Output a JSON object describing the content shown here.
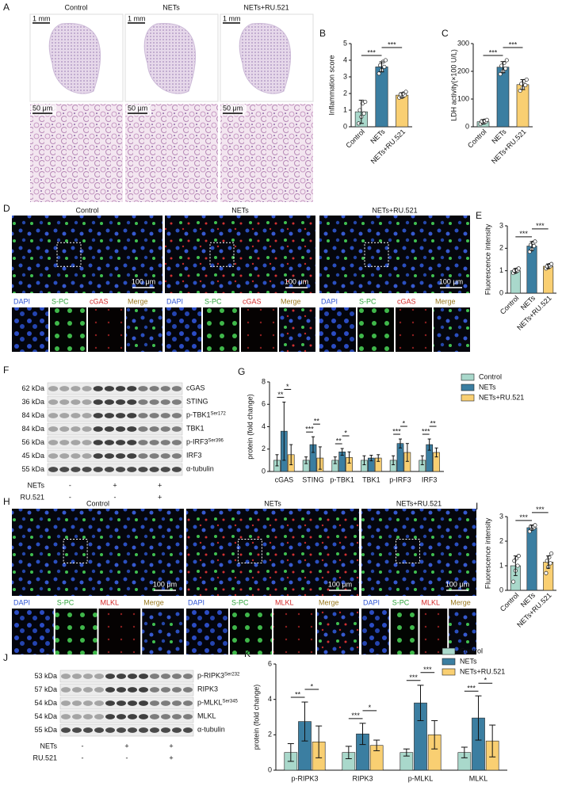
{
  "chart_data": [
    {
      "type": "bar",
      "panel": "B",
      "ylabel": "Inflammation score",
      "categories": [
        "Control",
        "NETs",
        "NETs+RU.521"
      ],
      "colors": [
        "#a9d8cb",
        "#3b7ea1",
        "#f9cf72"
      ],
      "values": [
        0.9,
        3.6,
        1.9
      ],
      "errors": [
        0.7,
        0.3,
        0.15
      ],
      "points": [
        [
          0.2,
          0.6,
          0.8,
          1.0,
          1.4,
          1.5
        ],
        [
          3.2,
          3.4,
          3.6,
          3.7,
          3.9,
          4.0
        ],
        [
          1.75,
          1.8,
          1.9,
          1.95,
          2.0,
          2.1
        ]
      ],
      "ylim": [
        0,
        5
      ],
      "yticks": [
        0,
        1,
        2,
        3,
        4,
        5
      ],
      "significance": [
        {
          "text": "***",
          "groups": [
            "Control",
            "NETs"
          ]
        },
        {
          "text": "***",
          "groups": [
            "NETs",
            "NETs+RU.521"
          ]
        }
      ]
    },
    {
      "type": "bar",
      "panel": "C",
      "ylabel": "LDH activity(×100 U/L)",
      "categories": [
        "Control",
        "NETs",
        "NETs+RU.521"
      ],
      "colors": [
        "#a9d8cb",
        "#3b7ea1",
        "#f9cf72"
      ],
      "values": [
        18,
        215,
        152
      ],
      "errors": [
        8,
        20,
        18
      ],
      "points": [
        [
          10,
          15,
          18,
          20,
          22,
          25
        ],
        [
          190,
          200,
          210,
          220,
          230,
          240
        ],
        [
          130,
          140,
          150,
          155,
          165,
          170
        ]
      ],
      "ylim": [
        0,
        300
      ],
      "yticks": [
        0,
        100,
        200,
        300
      ],
      "significance": [
        {
          "text": "***",
          "groups": [
            "Control",
            "NETs"
          ]
        },
        {
          "text": "***",
          "groups": [
            "NETs",
            "NETs+RU.521"
          ]
        }
      ]
    },
    {
      "type": "bar",
      "panel": "E",
      "ylabel": "Fluorescence intensity",
      "categories": [
        "Control",
        "NETs",
        "NETs+RU.521"
      ],
      "colors": [
        "#a9d8cb",
        "#3b7ea1",
        "#f9cf72"
      ],
      "values": [
        1.0,
        2.1,
        1.2
      ],
      "errors": [
        0.1,
        0.2,
        0.1
      ],
      "points": [
        [
          0.9,
          0.95,
          1.0,
          1.0,
          1.05,
          1.1
        ],
        [
          1.85,
          1.95,
          2.1,
          2.15,
          2.25,
          2.3
        ],
        [
          1.1,
          1.15,
          1.2,
          1.2,
          1.25,
          1.3
        ]
      ],
      "ylim": [
        0,
        3
      ],
      "yticks": [
        0,
        1,
        2,
        3
      ],
      "significance": [
        {
          "text": "***",
          "groups": [
            "Control",
            "NETs"
          ]
        },
        {
          "text": "***",
          "groups": [
            "NETs",
            "NETs+RU.521"
          ]
        }
      ]
    },
    {
      "type": "bar",
      "panel": "G",
      "ylabel": "protein (fold change)",
      "legend": "upper right",
      "categories": [
        "cGAS",
        "STING",
        "p-TBK1",
        "TBK1",
        "p-IRF3",
        "IRF3"
      ],
      "series": [
        {
          "name": "Control",
          "color": "#a9d8cb",
          "values": [
            1,
            1,
            1,
            1,
            1,
            1
          ],
          "errors": [
            0.5,
            0.3,
            0.3,
            0.4,
            0.4,
            0.4
          ]
        },
        {
          "name": "NETs",
          "color": "#3b7ea1",
          "values": [
            3.6,
            2.4,
            1.75,
            1.2,
            2.5,
            2.4
          ],
          "errors": [
            2.6,
            0.7,
            0.3,
            0.25,
            0.4,
            0.5
          ]
        },
        {
          "name": "NETs+RU.521",
          "color": "#f9cf72",
          "values": [
            1.5,
            1.2,
            1.25,
            1.2,
            1.7,
            1.7
          ],
          "errors": [
            0.9,
            1.0,
            0.5,
            0.3,
            0.8,
            0.4
          ]
        }
      ],
      "ylim": [
        0,
        8
      ],
      "yticks": [
        0,
        2,
        4,
        6,
        8
      ],
      "significance": [
        {
          "category": "cGAS",
          "text": "**",
          "groups": [
            "Control",
            "NETs"
          ]
        },
        {
          "category": "cGAS",
          "text": "*",
          "groups": [
            "NETs",
            "NETs+RU.521"
          ]
        },
        {
          "category": "STING",
          "text": "***",
          "groups": [
            "Control",
            "NETs"
          ]
        },
        {
          "category": "STING",
          "text": "**",
          "groups": [
            "NETs",
            "NETs+RU.521"
          ]
        },
        {
          "category": "p-TBK1",
          "text": "**",
          "groups": [
            "Control",
            "NETs"
          ]
        },
        {
          "category": "p-TBK1",
          "text": "*",
          "groups": [
            "NETs",
            "NETs+RU.521"
          ]
        },
        {
          "category": "p-IRF3",
          "text": "***",
          "groups": [
            "Control",
            "NETs"
          ]
        },
        {
          "category": "p-IRF3",
          "text": "*",
          "groups": [
            "NETs",
            "NETs+RU.521"
          ]
        },
        {
          "category": "IRF3",
          "text": "***",
          "groups": [
            "Control",
            "NETs"
          ]
        },
        {
          "category": "IRF3",
          "text": "**",
          "groups": [
            "NETs",
            "NETs+RU.521"
          ]
        }
      ]
    },
    {
      "type": "bar",
      "panel": "I",
      "ylabel": "Fluorescence intensity",
      "categories": [
        "Control",
        "NETs",
        "NETs+RU.521"
      ],
      "colors": [
        "#a9d8cb",
        "#3b7ea1",
        "#f9cf72"
      ],
      "values": [
        1.0,
        2.55,
        1.15
      ],
      "errors": [
        0.4,
        0.1,
        0.25
      ],
      "points": [
        [
          0.35,
          0.8,
          1.0,
          1.2,
          1.3,
          1.4
        ],
        [
          2.4,
          2.5,
          2.55,
          2.6,
          2.6,
          2.65
        ],
        [
          0.7,
          0.95,
          1.1,
          1.2,
          1.35,
          1.5
        ]
      ],
      "ylim": [
        0,
        3
      ],
      "yticks": [
        0,
        1,
        2,
        3
      ],
      "significance": [
        {
          "text": "***",
          "groups": [
            "Control",
            "NETs"
          ]
        },
        {
          "text": "***",
          "groups": [
            "NETs",
            "NETs+RU.521"
          ]
        }
      ]
    },
    {
      "type": "bar",
      "panel": "K",
      "ylabel": "protein (fold change)",
      "legend": "upper right",
      "categories": [
        "p-RIPK3",
        "RIPK3",
        "p-MLKL",
        "MLKL"
      ],
      "series": [
        {
          "name": "Control",
          "color": "#a9d8cb",
          "values": [
            1,
            1,
            1,
            1
          ],
          "errors": [
            0.5,
            0.35,
            0.2,
            0.3
          ]
        },
        {
          "name": "NETs",
          "color": "#3b7ea1",
          "values": [
            2.75,
            2.05,
            3.8,
            2.95
          ],
          "errors": [
            1.1,
            0.6,
            1.0,
            1.25
          ]
        },
        {
          "name": "NETs+RU.521",
          "color": "#f9cf72",
          "values": [
            1.6,
            1.4,
            2.0,
            1.65
          ],
          "errors": [
            0.9,
            0.3,
            0.8,
            0.9
          ]
        }
      ],
      "ylim": [
        0,
        6
      ],
      "yticks": [
        0,
        2,
        4,
        6
      ],
      "significance": [
        {
          "category": "p-RIPK3",
          "text": "**",
          "groups": [
            "Control",
            "NETs"
          ]
        },
        {
          "category": "p-RIPK3",
          "text": "*",
          "groups": [
            "NETs",
            "NETs+RU.521"
          ]
        },
        {
          "category": "RIPK3",
          "text": "***",
          "groups": [
            "Control",
            "NETs"
          ]
        },
        {
          "category": "RIPK3",
          "text": "*",
          "groups": [
            "NETs",
            "NETs+RU.521"
          ]
        },
        {
          "category": "p-MLKL",
          "text": "***",
          "groups": [
            "Control",
            "NETs"
          ]
        },
        {
          "category": "p-MLKL",
          "text": "***",
          "groups": [
            "NETs",
            "NETs+RU.521"
          ]
        },
        {
          "category": "MLKL",
          "text": "***",
          "groups": [
            "Control",
            "NETs"
          ]
        },
        {
          "category": "MLKL",
          "text": "*",
          "groups": [
            "NETs",
            "NETs+RU.521"
          ]
        }
      ]
    }
  ],
  "figure": {
    "A": {
      "letter": "A",
      "columns": [
        "Control",
        "NETs",
        "NETs+RU.521"
      ],
      "scale_top": "1 mm",
      "scale_bottom": "50 μm"
    },
    "D": {
      "letter": "D",
      "columns": [
        "Control",
        "NETs",
        "NETs+RU.521"
      ],
      "scale": "100 μm",
      "channels": [
        "DAPI",
        "S-PC",
        "cGAS",
        "Merge"
      ]
    },
    "H": {
      "letter": "H",
      "columns": [
        "Control",
        "NETs",
        "NETs+RU.521"
      ],
      "scale": "100 μm",
      "channels": [
        "DAPI",
        "S-PC",
        "MLKL",
        "Merge"
      ]
    },
    "F": {
      "letter": "F",
      "rows": [
        {
          "kda": "62 kDa",
          "protein": "cGAS"
        },
        {
          "kda": "36 kDa",
          "protein": "STING"
        },
        {
          "kda": "84 kDa",
          "protein": "p-TBK1",
          "site": "Ser172"
        },
        {
          "kda": "84 kDa",
          "protein": "TBK1"
        },
        {
          "kda": "56 kDa",
          "protein": "p-IRF3",
          "site": "Ser396"
        },
        {
          "kda": "45 kDa",
          "protein": "IRF3"
        },
        {
          "kda": "55 kDa",
          "protein": "α-tubulin"
        }
      ],
      "treatments": [
        {
          "name": "NETs",
          "signs": [
            "-",
            "+",
            "+"
          ]
        },
        {
          "name": "RU.521",
          "signs": [
            "-",
            "-",
            "+"
          ]
        }
      ]
    },
    "J": {
      "letter": "J",
      "rows": [
        {
          "kda": "53 kDa",
          "protein": "p-RIPK3",
          "site": "Ser232"
        },
        {
          "kda": "57 kDa",
          "protein": "RIPK3"
        },
        {
          "kda": "54 kDa",
          "protein": "p-MLKL",
          "site": "Ser345"
        },
        {
          "kda": "54 kDa",
          "protein": "MLKL"
        },
        {
          "kda": "55 kDa",
          "protein": "α-tubulin"
        }
      ],
      "treatments": [
        {
          "name": "NETs",
          "signs": [
            "-",
            "+",
            "+"
          ]
        },
        {
          "name": "RU.521",
          "signs": [
            "-",
            "-",
            "+"
          ]
        }
      ]
    }
  }
}
